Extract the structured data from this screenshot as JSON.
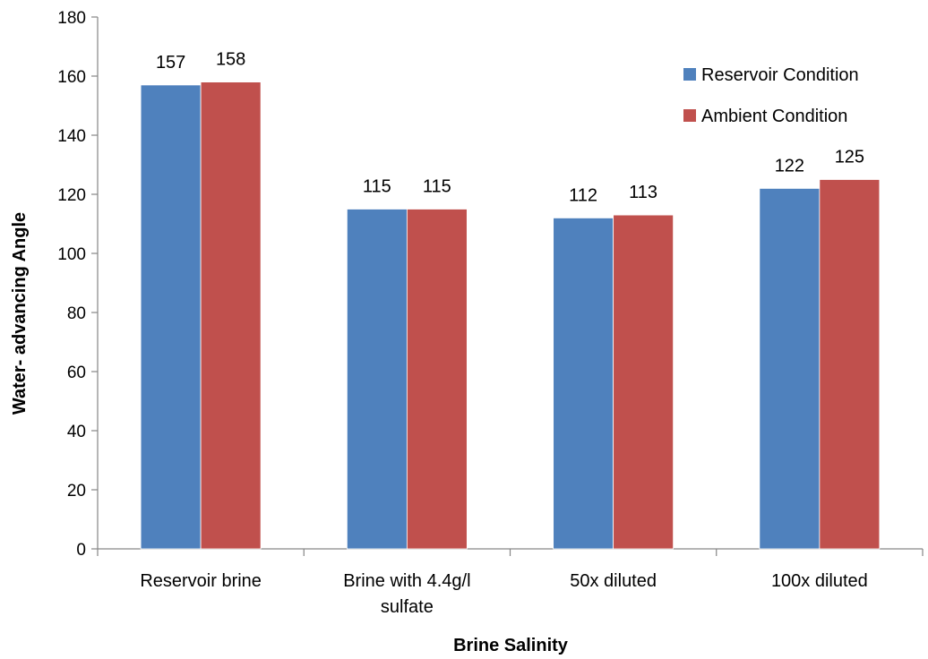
{
  "chart_data": {
    "type": "bar",
    "xlabel": "Brine Salinity",
    "ylabel": "Water- advancing Angle",
    "ylim": [
      0,
      180
    ],
    "ytick_step": 20,
    "grid": false,
    "legend_position": "top-right",
    "categories": [
      [
        "Reservoir brine"
      ],
      [
        "Brine with 4.4g/l",
        "sulfate"
      ],
      [
        "50x diluted"
      ],
      [
        "100x diluted"
      ]
    ],
    "series": [
      {
        "name": "Reservoir Condition",
        "color": "#4F81BD",
        "values": [
          157,
          115,
          112,
          122
        ]
      },
      {
        "name": "Ambient Condition",
        "color": "#C0504D",
        "values": [
          158,
          115,
          113,
          125
        ]
      }
    ]
  }
}
